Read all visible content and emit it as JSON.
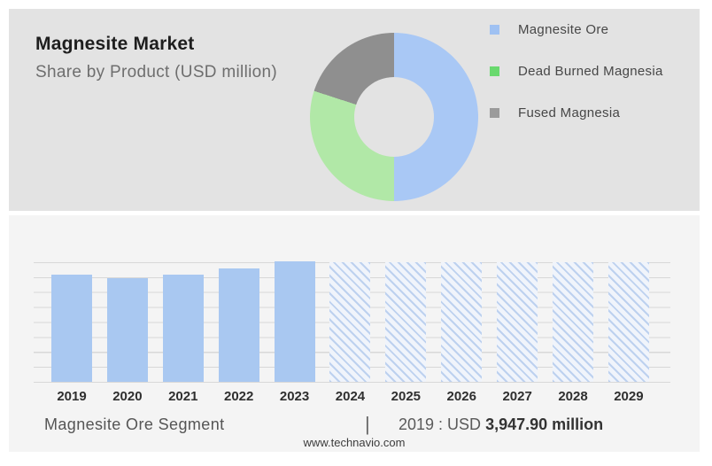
{
  "header": {
    "title": "Magnesite Market",
    "subtitle": "Share by Product (USD million)"
  },
  "footer": {
    "segment_label": "Magnesite Ore Segment",
    "divider": "|",
    "value_prefix": "2019 : USD",
    "value_bold": "3,947.90 million",
    "website": "www.technavio.com"
  },
  "colors": {
    "panel_top_bg": "#e3e3e3",
    "panel_bottom_bg": "#f4f4f4",
    "bar_solid": "#a9c8f1",
    "hatch_stripe": "#bdd1ef",
    "hatch_bg": "#f0f4fb",
    "gridline": "#d8d8d8"
  },
  "chart_data": [
    {
      "type": "pie",
      "subtype": "donut",
      "title": "Share by Product (USD million)",
      "legend_position": "right",
      "series": [
        {
          "label": "Magnesite Ore",
          "pct": 50,
          "color": "#a9c8f5",
          "legend_color": "#9fc1f2"
        },
        {
          "label": "Dead Burned Magnesia",
          "pct": 30,
          "color": "#b1e8a7",
          "legend_color": "#69d96e"
        },
        {
          "label": "Fused Magnesia",
          "pct": 20,
          "color": "#8f8f8f",
          "legend_color": "#9b9b9b"
        }
      ]
    },
    {
      "type": "bar",
      "categories": [
        "2019",
        "2020",
        "2021",
        "2022",
        "2023",
        "2024",
        "2025",
        "2026",
        "2027",
        "2028",
        "2029"
      ],
      "heights_pct": [
        90,
        87,
        90,
        95,
        101,
        100,
        100,
        100,
        100,
        100,
        100
      ],
      "values_est_usd_million": [
        3947.9,
        3815,
        3960,
        4165,
        4430,
        4390,
        4390,
        4390,
        4390,
        4390,
        4390
      ],
      "forecast_start_index": 5,
      "anchor_label": "2019 : USD 3,947.90 million",
      "segment_label": "Magnesite Ore Segment",
      "xlabel": "",
      "ylabel": "",
      "y_axis_ticks": "none",
      "gridline_count": 9,
      "legend": "none"
    }
  ]
}
